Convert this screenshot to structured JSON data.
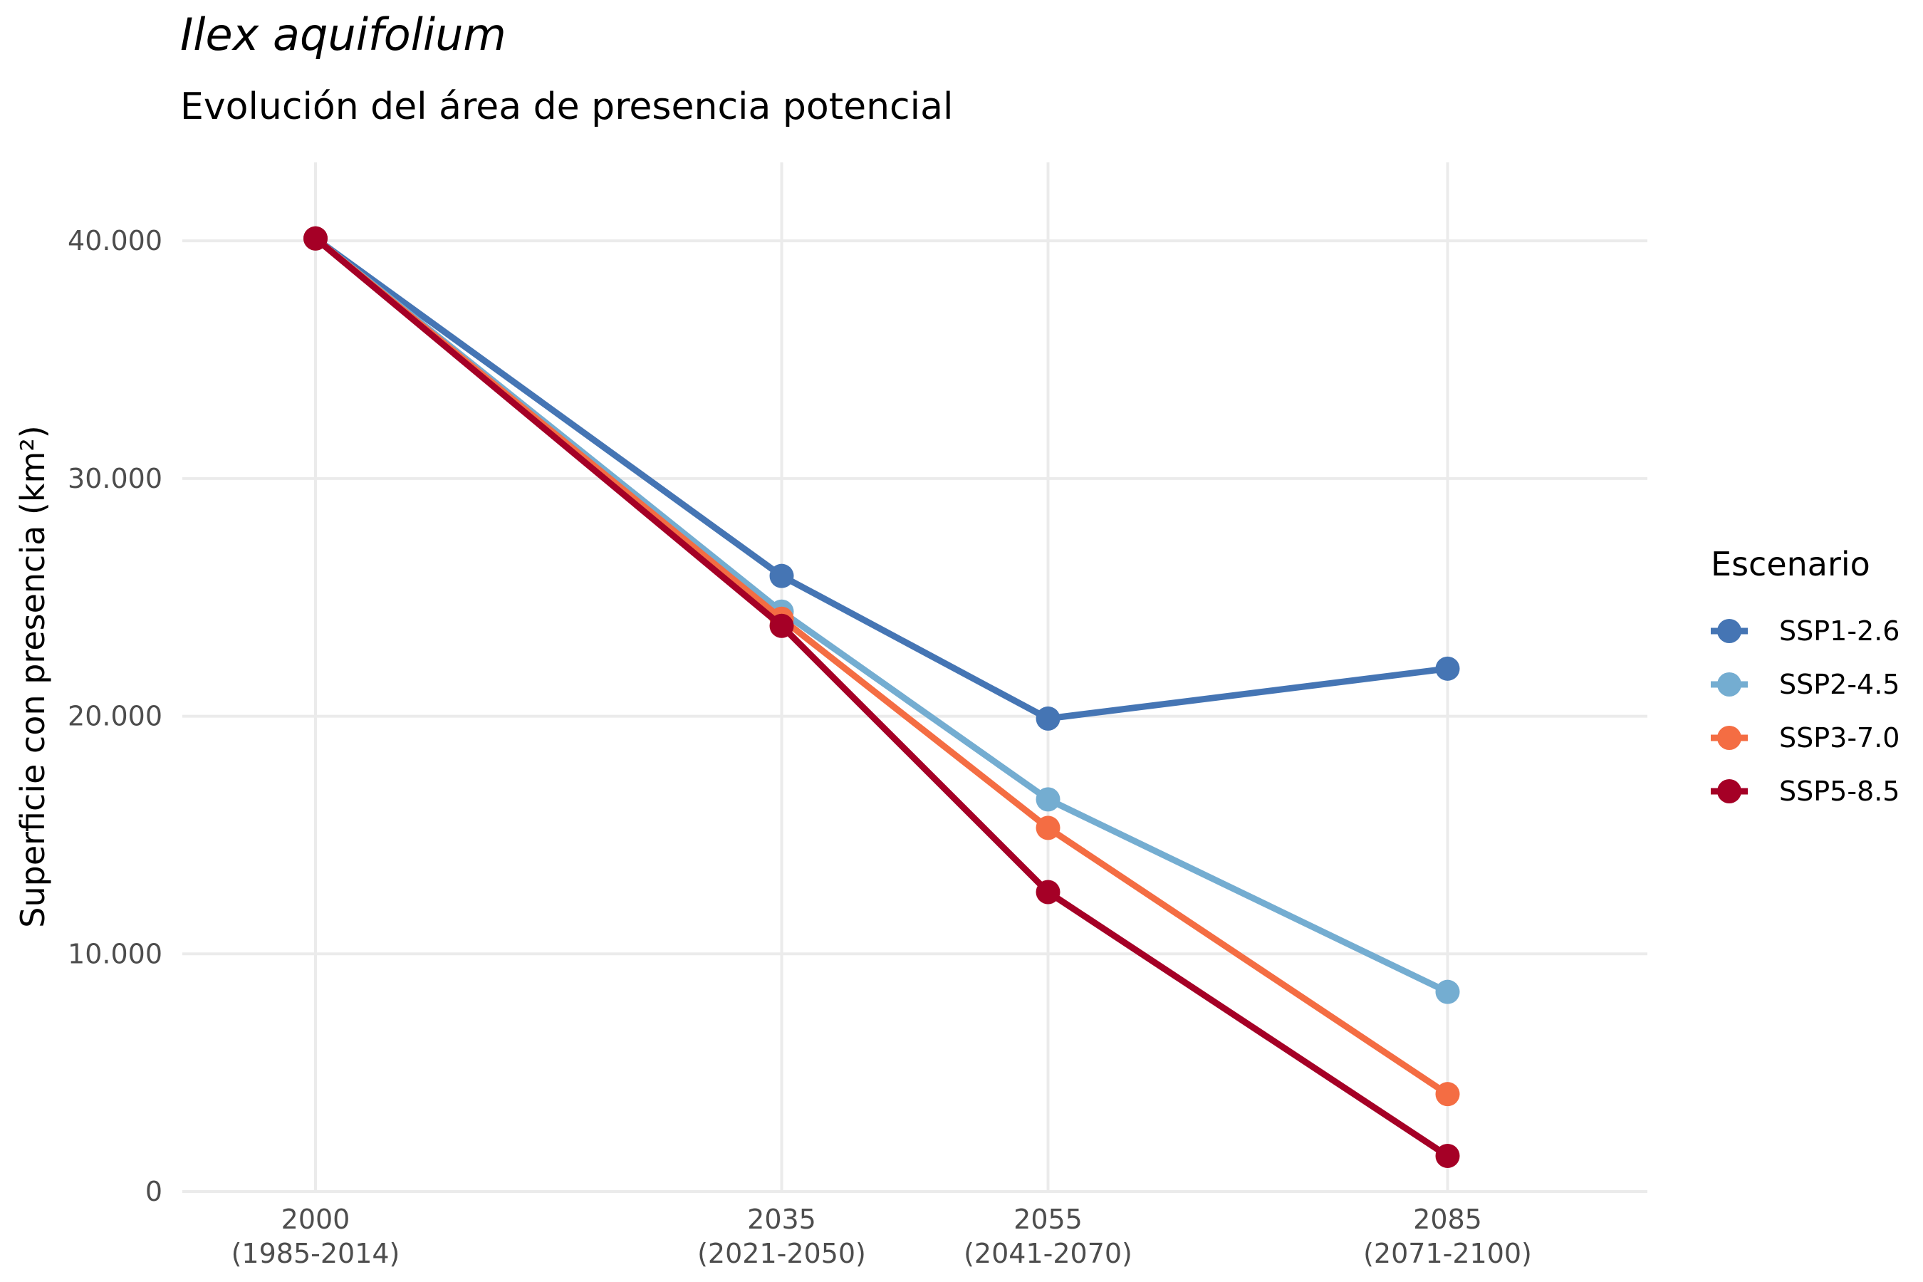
{
  "chart_data": {
    "type": "line",
    "title": "Ilex aquifolium",
    "subtitle": "Evolución del área de presencia potencial",
    "xlabel": "",
    "ylabel": "Superficie con presencia (km²)",
    "x": [
      2000,
      2035,
      2055,
      2085
    ],
    "x_tick_labels": [
      [
        "2000",
        "(1985-2014)"
      ],
      [
        "2035",
        "(2021-2050)"
      ],
      [
        "2055",
        "(2041-2070)"
      ],
      [
        "2085",
        "(2071-2100)"
      ]
    ],
    "xlim": [
      1990,
      2100
    ],
    "ylim": [
      0,
      43300
    ],
    "y_ticks": [
      0,
      10000,
      20000,
      30000,
      40000
    ],
    "y_tick_labels": [
      "0",
      "10.000",
      "20.000",
      "30.000",
      "40.000"
    ],
    "grid": true,
    "legend": {
      "title": "Escenario",
      "placement": "right"
    },
    "series": [
      {
        "name": "SSP1-2.6",
        "color": "#4575b4",
        "values": [
          40100,
          25900,
          19900,
          22000
        ]
      },
      {
        "name": "SSP2-4.5",
        "color": "#74add1",
        "values": [
          40100,
          24400,
          16500,
          8400
        ]
      },
      {
        "name": "SSP3-7.0",
        "color": "#f46d43",
        "values": [
          40100,
          24100,
          15300,
          4100
        ]
      },
      {
        "name": "SSP5-8.5",
        "color": "#a50026",
        "values": [
          40100,
          23800,
          12600,
          1500
        ]
      }
    ]
  }
}
